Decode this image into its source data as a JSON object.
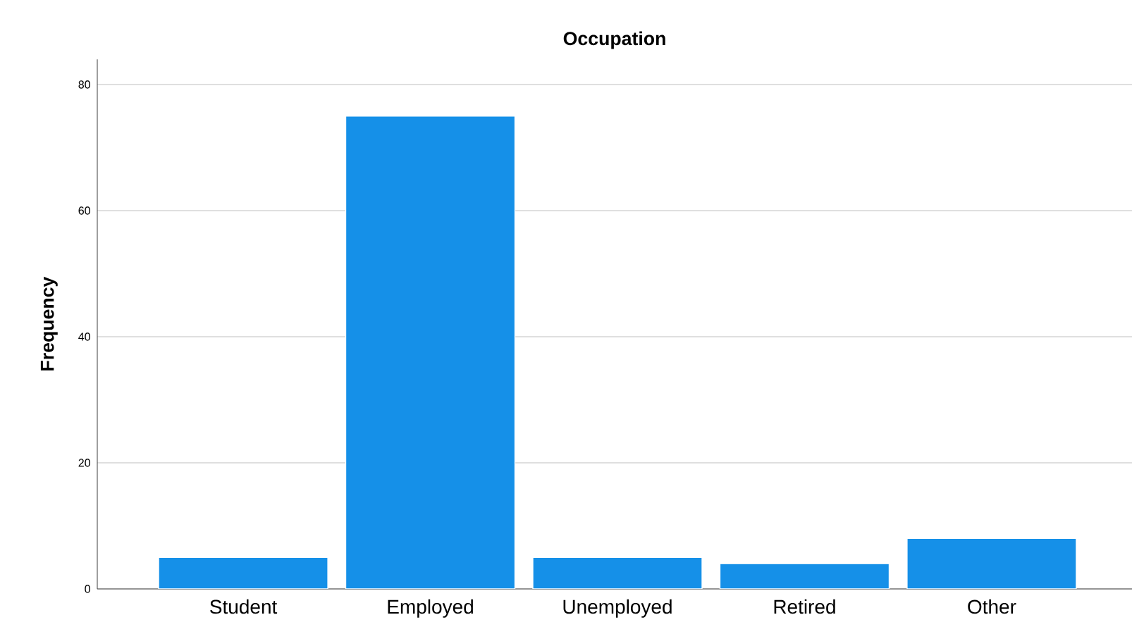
{
  "chart_data": {
    "type": "bar",
    "title": "Occupation",
    "ylabel": "Frequency",
    "categories": [
      "Student",
      "Employed",
      "Unemployed",
      "Retired",
      "Other"
    ],
    "values": [
      5,
      75,
      5,
      4,
      8
    ],
    "color": "#1590e8",
    "ylim": [
      0,
      84
    ],
    "yticks": [
      0,
      20,
      40,
      60,
      80
    ],
    "grid": "y"
  }
}
